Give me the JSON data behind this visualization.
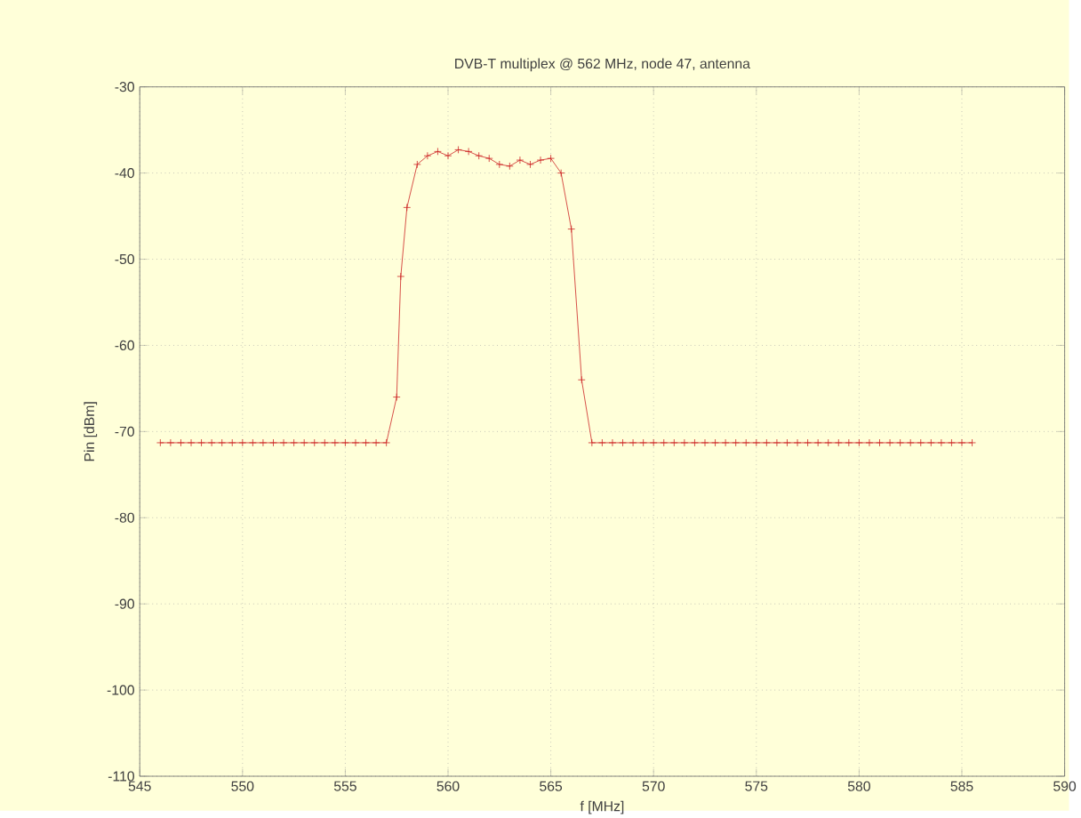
{
  "chart_data": {
    "type": "line",
    "title": "DVB-T multiplex @ 562 MHz, node 47, antenna",
    "xlabel": "f [MHz]",
    "ylabel": "Pin [dBm]",
    "x": [
      546,
      546.5,
      547,
      547.5,
      548,
      548.5,
      549,
      549.5,
      550,
      550.5,
      551,
      551.5,
      552,
      552.5,
      553,
      553.5,
      554,
      554.5,
      555,
      555.5,
      556,
      556.5,
      557,
      557.5,
      557.7,
      558,
      558.5,
      559,
      559.5,
      560,
      560.5,
      561,
      561.5,
      562,
      562.5,
      563,
      563.5,
      564,
      564.5,
      565,
      565.5,
      566,
      566.5,
      567,
      567.5,
      568,
      568.5,
      569,
      569.5,
      570,
      570.5,
      571,
      571.5,
      572,
      572.5,
      573,
      573.5,
      574,
      574.5,
      575,
      575.5,
      576,
      576.5,
      577,
      577.5,
      578,
      578.5,
      579,
      579.5,
      580,
      580.5,
      581,
      581.5,
      582,
      582.5,
      583,
      583.5,
      584,
      584.5,
      585,
      585.5
    ],
    "series": [
      {
        "color": "#cc2222",
        "values": [
          -71.3,
          -71.3,
          -71.3,
          -71.3,
          -71.3,
          -71.3,
          -71.3,
          -71.3,
          -71.3,
          -71.3,
          -71.3,
          -71.3,
          -71.3,
          -71.3,
          -71.3,
          -71.3,
          -71.3,
          -71.3,
          -71.3,
          -71.3,
          -71.3,
          -71.3,
          -71.3,
          -66,
          -52,
          -44,
          -39,
          -38,
          -37.5,
          -38,
          -37.3,
          -37.5,
          -38,
          -38.3,
          -39,
          -39.2,
          -38.5,
          -39,
          -38.5,
          -38.3,
          -40,
          -46.5,
          -64,
          -71.3,
          -71.3,
          -71.3,
          -71.3,
          -71.3,
          -71.3,
          -71.3,
          -71.3,
          -71.3,
          -71.3,
          -71.3,
          -71.3,
          -71.3,
          -71.3,
          -71.3,
          -71.3,
          -71.3,
          -71.3,
          -71.3,
          -71.3,
          -71.3,
          -71.3,
          -71.3,
          -71.3,
          -71.3,
          -71.3,
          -71.3,
          -71.3,
          -71.3,
          -71.3,
          -71.3,
          -71.3,
          -71.3,
          -71.3,
          -71.3,
          -71.3,
          -71.3,
          -71.3
        ]
      }
    ],
    "xlim": [
      545,
      590
    ],
    "xticks": [
      545,
      550,
      555,
      560,
      565,
      570,
      575,
      580,
      585,
      590
    ],
    "ylim": [
      -110,
      -30
    ],
    "yticks": [
      -110,
      -100,
      -90,
      -80,
      -70,
      -60,
      -50,
      -40,
      -30
    ],
    "grid": true,
    "marker": "cross",
    "line_style": "solid"
  }
}
